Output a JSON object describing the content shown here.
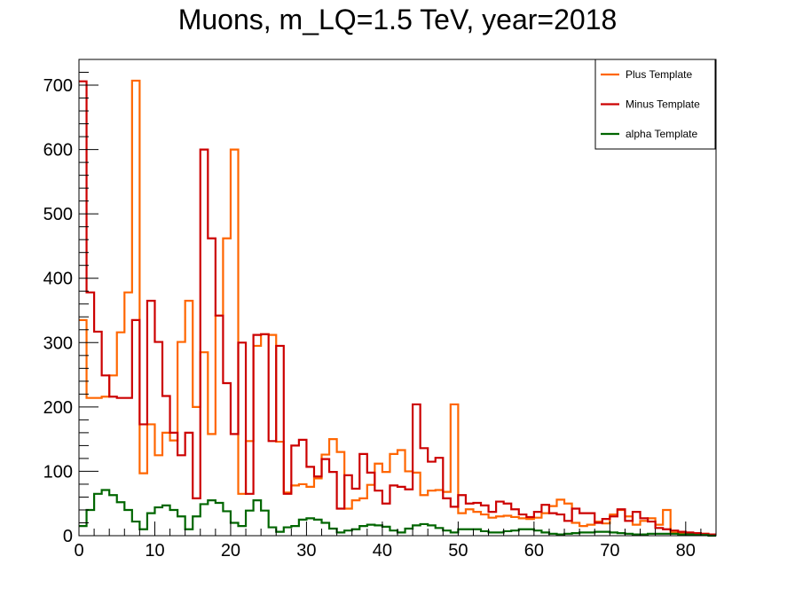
{
  "chart_data": {
    "type": "line",
    "title": "Muons, m_LQ=1.5 TeV, year=2018",
    "xlabel": "",
    "ylabel": "",
    "xlim": [
      0,
      84
    ],
    "ylim": [
      0,
      740
    ],
    "bin_width": 1,
    "xticks": [
      0,
      10,
      20,
      30,
      40,
      50,
      60,
      70,
      80
    ],
    "yticks": [
      0,
      100,
      200,
      300,
      400,
      500,
      600,
      700
    ],
    "legend_position": "top-right",
    "series": [
      {
        "name": "Plus Template",
        "color": "#ff6600",
        "values": [
          335,
          214,
          214,
          216,
          249,
          316,
          378,
          707,
          97,
          173,
          125,
          160,
          148,
          301,
          365,
          200,
          285,
          158,
          342,
          462,
          600,
          65,
          147,
          295,
          313,
          312,
          146,
          67,
          78,
          80,
          76,
          89,
          126,
          150,
          130,
          42,
          55,
          58,
          79,
          112,
          99,
          127,
          133,
          100,
          98,
          63,
          70,
          71,
          68,
          204,
          35,
          41,
          37,
          33,
          28,
          30,
          31,
          29,
          27,
          26,
          28,
          35,
          46,
          56,
          50,
          20,
          15,
          17,
          22,
          19,
          33,
          40,
          30,
          17,
          23,
          27,
          17,
          40,
          5,
          4,
          4,
          3,
          3,
          2
        ]
      },
      {
        "name": "Minus Template",
        "color": "#cc0000",
        "values": [
          706,
          378,
          317,
          249,
          216,
          214,
          214,
          335,
          173,
          365,
          301,
          217,
          160,
          125,
          160,
          58,
          600,
          462,
          342,
          237,
          158,
          300,
          65,
          312,
          313,
          147,
          295,
          65,
          140,
          149,
          107,
          92,
          119,
          99,
          42,
          94,
          73,
          127,
          98,
          70,
          50,
          78,
          76,
          72,
          204,
          136,
          115,
          121,
          58,
          45,
          63,
          50,
          51,
          47,
          37,
          53,
          50,
          41,
          33,
          29,
          37,
          48,
          35,
          33,
          23,
          42,
          35,
          35,
          20,
          26,
          30,
          41,
          23,
          37,
          27,
          22,
          12,
          10,
          8,
          6,
          5,
          4,
          3,
          2
        ]
      },
      {
        "name": "alpha Template",
        "color": "#006600",
        "values": [
          15,
          40,
          65,
          71,
          63,
          52,
          40,
          22,
          10,
          35,
          44,
          47,
          40,
          30,
          10,
          30,
          49,
          55,
          51,
          38,
          20,
          15,
          39,
          55,
          39,
          13,
          6,
          13,
          15,
          25,
          27,
          25,
          20,
          11,
          5,
          8,
          10,
          15,
          17,
          16,
          14,
          8,
          5,
          11,
          16,
          18,
          16,
          12,
          8,
          5,
          10,
          10,
          10,
          7,
          5,
          5,
          7,
          8,
          10,
          10,
          8,
          5,
          3,
          2,
          3,
          4,
          5,
          5,
          6,
          6,
          5,
          4,
          3,
          2,
          2,
          3,
          3,
          3,
          3,
          2,
          2,
          1,
          1,
          0
        ]
      }
    ]
  }
}
